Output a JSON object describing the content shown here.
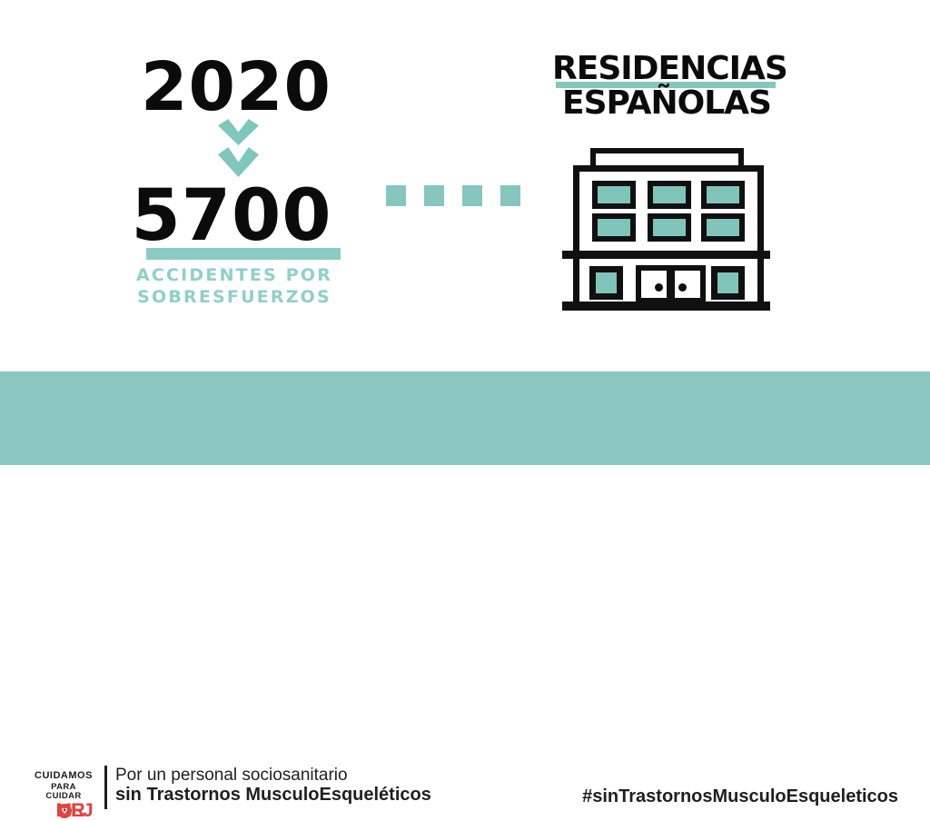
{
  "palette": {
    "teal_accent": "#85C6BE",
    "teal_window": "#7FC4BA",
    "teal_bar": "#8BC6C0",
    "teal_label_text": "#8ED0C8",
    "ink": "#0B0B0B",
    "footer_text": "#1F1F1F",
    "brand_red": "#E2423E"
  },
  "stat": {
    "year": "2020",
    "value": "5700",
    "label_line1": "ACCIDENTES POR",
    "label_line2": "SOBRESFUERZOS"
  },
  "heading": {
    "line1": "RESIDENCIAS",
    "line2": "ESPAÑOLAS"
  },
  "connector": {
    "square_count": 4
  },
  "building": {
    "icon": "residence-building-icon",
    "upper_window_rows": 2,
    "upper_window_cols": 3
  },
  "footer": {
    "logo": {
      "line1": "CUIDAMOS",
      "line2": "PARA CUIDAR",
      "word_pre": "MEJ",
      "word_post": "R",
      "heart_char": "♥"
    },
    "tagline_line1": "Por un personal sociosanitario",
    "tagline_line2": "sin Trastornos MusculoEsqueléticos",
    "hashtag": "#sinTrastornosMusculoEsqueleticos"
  }
}
